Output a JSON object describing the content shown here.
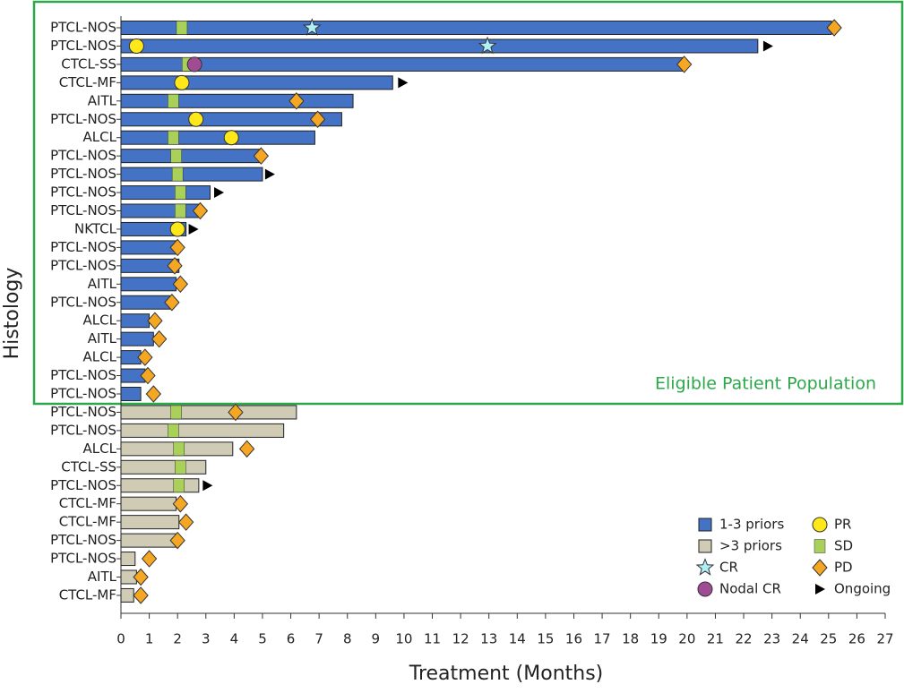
{
  "chart_data": {
    "type": "swimmer",
    "x_label": "Treatment (Months)",
    "y_label": "Histology",
    "annotation": "Eligible Patient Population",
    "categories": [
      "PTCL-NOS",
      "PTCL-NOS",
      "CTCL-SS",
      "CTCL-MF",
      "AITL",
      "PTCL-NOS",
      "ALCL",
      "PTCL-NOS",
      "PTCL-NOS",
      "PTCL-NOS",
      "PTCL-NOS",
      "NKTCL",
      "PTCL-NOS",
      "PTCL-NOS",
      "AITL",
      "PTCL-NOS",
      "ALCL",
      "AITL",
      "ALCL",
      "PTCL-NOS",
      "PTCL-NOS",
      "PTCL-NOS",
      "PTCL-NOS",
      "ALCL",
      "CTCL-SS",
      "PTCL-NOS",
      "CTCL-MF",
      "CTCL-MF",
      "PTCL-NOS",
      "PTCL-NOS",
      "AITL",
      "CTCL-MF"
    ],
    "series": [
      {
        "name": "1-3 priors",
        "color": "#4472c4",
        "values": [
          25.1,
          22.5,
          19.9,
          9.6,
          8.2,
          7.8,
          6.85,
          4.9,
          5.0,
          3.15,
          2.75,
          2.3,
          2.0,
          2.05,
          1.95,
          1.8,
          1.0,
          1.15,
          0.7,
          0.85,
          0.7,
          null,
          null,
          null,
          null,
          null,
          null,
          null,
          null,
          null,
          null,
          null
        ]
      },
      {
        "name": ">3 priors",
        "color": "#cfcbb4",
        "values": [
          null,
          null,
          null,
          null,
          null,
          null,
          null,
          null,
          null,
          null,
          null,
          null,
          null,
          null,
          null,
          null,
          null,
          null,
          null,
          null,
          null,
          6.2,
          5.75,
          3.95,
          3.0,
          2.75,
          1.95,
          2.05,
          1.95,
          0.5,
          0.55,
          0.45
        ]
      }
    ],
    "markers": [
      {
        "name": "CR",
        "shape": "star",
        "color": "#aef0f5",
        "values": [
          6.75,
          12.95,
          null,
          null,
          null,
          null,
          null,
          null,
          null,
          null,
          null,
          null,
          null,
          null,
          null,
          null,
          null,
          null,
          null,
          null,
          null,
          null,
          null,
          null,
          null,
          null,
          null,
          null,
          null,
          null,
          null,
          null
        ]
      },
      {
        "name": "Nodal CR",
        "shape": "circle",
        "color": "#a04c94",
        "values": [
          null,
          null,
          2.6,
          null,
          null,
          null,
          null,
          null,
          null,
          null,
          null,
          null,
          null,
          null,
          null,
          null,
          null,
          null,
          null,
          null,
          null,
          null,
          null,
          null,
          null,
          null,
          null,
          null,
          null,
          null,
          null,
          null
        ]
      },
      {
        "name": "PR",
        "shape": "circle",
        "color": "#ffe81a",
        "values": [
          null,
          0.55,
          null,
          2.15,
          null,
          2.65,
          3.9,
          null,
          null,
          null,
          null,
          2.0,
          null,
          null,
          null,
          null,
          null,
          null,
          null,
          null,
          null,
          null,
          null,
          null,
          null,
          null,
          null,
          null,
          null,
          null,
          null,
          null
        ]
      },
      {
        "name": "SD",
        "shape": "square",
        "color": "#a9d15a",
        "values": [
          2.15,
          null,
          2.35,
          null,
          1.85,
          null,
          1.85,
          1.95,
          2.0,
          2.1,
          2.1,
          null,
          null,
          null,
          null,
          null,
          null,
          null,
          null,
          null,
          null,
          1.95,
          1.85,
          2.05,
          2.1,
          2.05,
          null,
          null,
          null,
          null,
          null,
          null
        ]
      },
      {
        "name": "PD",
        "shape": "diamond",
        "color": "#f5a623",
        "values": [
          25.2,
          null,
          19.9,
          null,
          6.2,
          6.95,
          null,
          4.95,
          null,
          null,
          2.8,
          null,
          2.0,
          1.9,
          2.1,
          1.8,
          1.2,
          1.35,
          0.85,
          0.95,
          1.15,
          4.05,
          null,
          4.45,
          null,
          null,
          2.1,
          2.3,
          2.0,
          1.0,
          0.7,
          0.7
        ]
      },
      {
        "name": "Ongoing",
        "shape": "triangle",
        "color": "#000000",
        "values": [
          null,
          22.85,
          null,
          9.95,
          null,
          null,
          null,
          null,
          5.25,
          3.45,
          null,
          2.55,
          null,
          null,
          null,
          null,
          null,
          null,
          null,
          null,
          null,
          null,
          null,
          null,
          null,
          3.05,
          null,
          null,
          null,
          null,
          null,
          null
        ]
      }
    ],
    "xlim": [
      0,
      27
    ],
    "xticks": [
      0,
      1,
      2,
      3,
      4,
      5,
      6,
      7,
      8,
      9,
      10,
      11,
      12,
      13,
      14,
      15,
      16,
      17,
      18,
      19,
      20,
      21,
      22,
      23,
      24,
      25,
      26,
      27
    ]
  }
}
